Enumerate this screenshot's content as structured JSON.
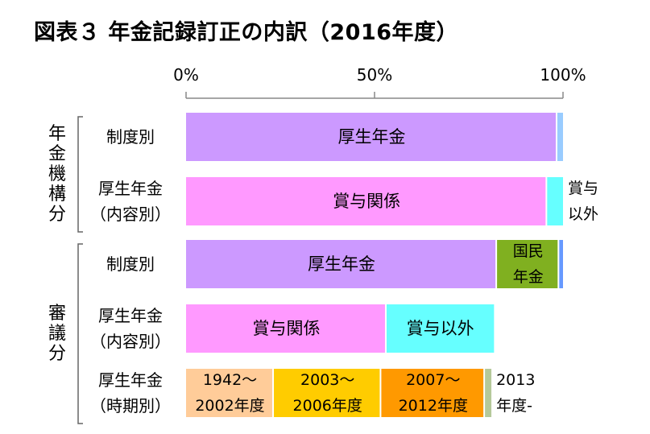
{
  "title": "図表３ 年金記録訂正の内訳（2016年度）",
  "chart_data": {
    "type": "bar",
    "orientation": "horizontal",
    "stacked": true,
    "xlim": [
      0,
      100
    ],
    "x_ticks": [
      "0%",
      "50%",
      "100%"
    ],
    "grid": false,
    "legend": "none",
    "groups": [
      {
        "label": "年金機構分",
        "rows": [
          0,
          1
        ]
      },
      {
        "label": "審議分",
        "rows": [
          2,
          3,
          4
        ]
      }
    ],
    "rows": [
      {
        "label": [
          "制度別"
        ],
        "segments": [
          {
            "label": [
              "厚生年金"
            ],
            "value": 98.5,
            "color": "#CC99FF"
          },
          {
            "label": [],
            "value": 1.5,
            "color": "#99CCFF"
          }
        ]
      },
      {
        "label": [
          "厚生年金",
          "（内容別）"
        ],
        "segments": [
          {
            "label": [
              "賞与関係"
            ],
            "value": 95.8,
            "color": "#FF99FF"
          },
          {
            "label": [
              "賞与",
              "以外"
            ],
            "value": 4.2,
            "color": "#66FFFF"
          }
        ]
      },
      {
        "label": [
          "制度別"
        ],
        "segments": [
          {
            "label": [
              "厚生年金"
            ],
            "value": 82.5,
            "color": "#CC99FF"
          },
          {
            "label": [
              "国民",
              "年金"
            ],
            "value": 16.5,
            "color": "#80B020"
          },
          {
            "label": [],
            "value": 1.0,
            "color": "#6699FF"
          }
        ]
      },
      {
        "label": [
          "厚生年金",
          "（内容別）"
        ],
        "segments": [
          {
            "label": [
              "賞与関係"
            ],
            "value": 53.2,
            "color": "#FF99FF"
          },
          {
            "label": [
              "賞与以外"
            ],
            "value": 28.5,
            "color": "#66FFFF"
          }
        ]
      },
      {
        "label": [
          "厚生年金",
          "（時期別）"
        ],
        "segments": [
          {
            "label": [
              "1942～",
              "2002年度"
            ],
            "value": 23.3,
            "color": "#FFCC99"
          },
          {
            "label": [
              "2003～",
              "2006年度"
            ],
            "value": 28.5,
            "color": "#FFCC00"
          },
          {
            "label": [
              "2007～",
              "2012年度"
            ],
            "value": 27.5,
            "color": "#FF9900"
          },
          {
            "label": [
              "2013",
              "年度-"
            ],
            "value": 1.7,
            "color": "#B5C99A"
          }
        ]
      }
    ]
  }
}
